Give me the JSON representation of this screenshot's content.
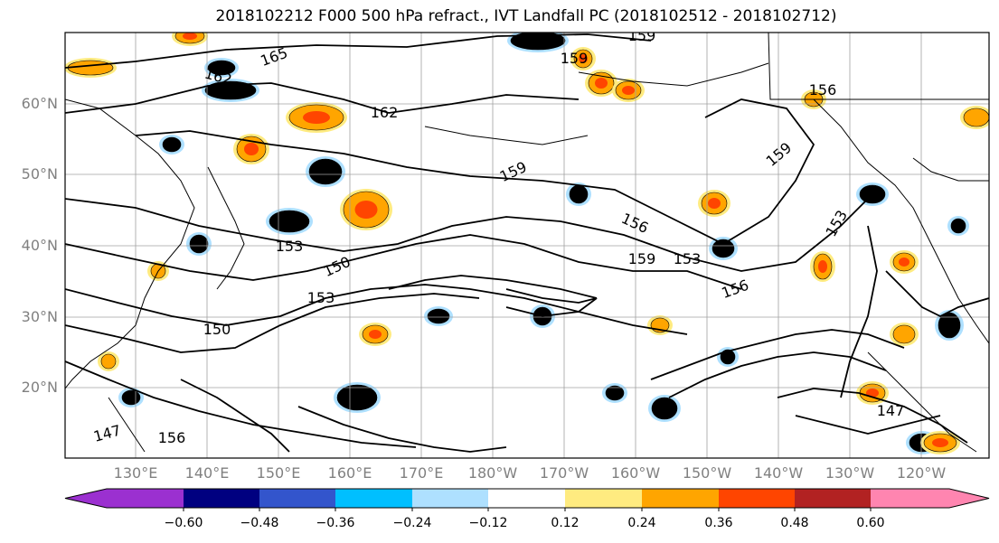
{
  "title": "2018102212 F000 500 hPa refract., IVT Landfall PC (2018102512 - 2018102712)",
  "map": {
    "lat_labels": [
      "60°N",
      "50°N",
      "40°N",
      "30°N",
      "20°N"
    ],
    "lon_labels": [
      "130°E",
      "140°E",
      "150°E",
      "160°E",
      "170°E",
      "180°W",
      "170°W",
      "160°W",
      "150°W",
      "140°W",
      "130°W",
      "120°W"
    ],
    "contour_labels": [
      "165",
      "162",
      "159",
      "162",
      "159",
      "159",
      "156",
      "159",
      "153",
      "153",
      "150",
      "153",
      "150",
      "156",
      "147",
      "156",
      "159",
      "153",
      "156",
      "147"
    ],
    "grid": true,
    "contour_color": "#000000"
  },
  "colorbar": {
    "colors": [
      "#9b30d0",
      "#000080",
      "#3355cc",
      "#00bfff",
      "#aee0ff",
      "#ffffff",
      "#ffeb80",
      "#ffa500",
      "#ff4500",
      "#b22222",
      "#ff85b0"
    ],
    "ticks": [
      "−0.60",
      "−0.48",
      "−0.36",
      "−0.24",
      "−0.12",
      "0.12",
      "0.24",
      "0.36",
      "0.48",
      "0.60"
    ]
  }
}
